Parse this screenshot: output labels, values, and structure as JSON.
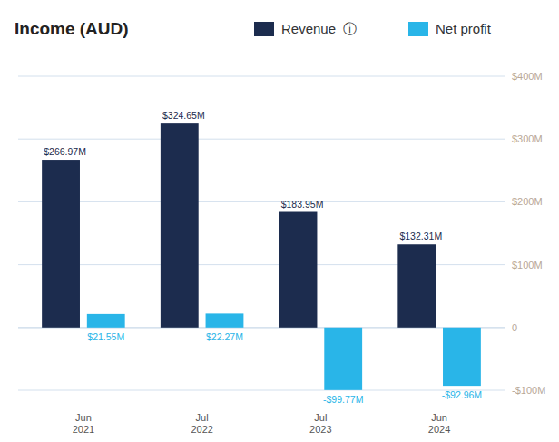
{
  "chart_data": {
    "type": "bar",
    "title": "Income (AUD)",
    "categories": [
      "Jun\n2021",
      "Jul\n2022",
      "Jul\n2023",
      "Jun\n2024"
    ],
    "series": [
      {
        "name": "Revenue  ⓘ",
        "color": "#1c2c4e",
        "values": [
          266.97,
          324.65,
          183.95,
          132.31
        ],
        "value_labels": [
          "$266.97M",
          "$324.65M",
          "$183.95M",
          "$132.31M"
        ]
      },
      {
        "name": "Net profit",
        "color": "#29b5e8",
        "values": [
          21.55,
          22.27,
          -99.77,
          -92.96
        ],
        "value_labels": [
          "$21.55M",
          "$22.27M",
          "-$99.77M",
          "-$92.96M"
        ]
      }
    ],
    "ylim": [
      -100,
      400
    ],
    "yticks": [
      {
        "value": -100,
        "label": "-$100M"
      },
      0,
      {
        "value": 100,
        "label": "$100M"
      },
      {
        "value": 200,
        "label": "$200M"
      },
      {
        "value": 300,
        "label": "$300M"
      },
      {
        "value": 400,
        "label": "$400M"
      }
    ],
    "grid": true,
    "legend": "top",
    "data_labels": true
  }
}
